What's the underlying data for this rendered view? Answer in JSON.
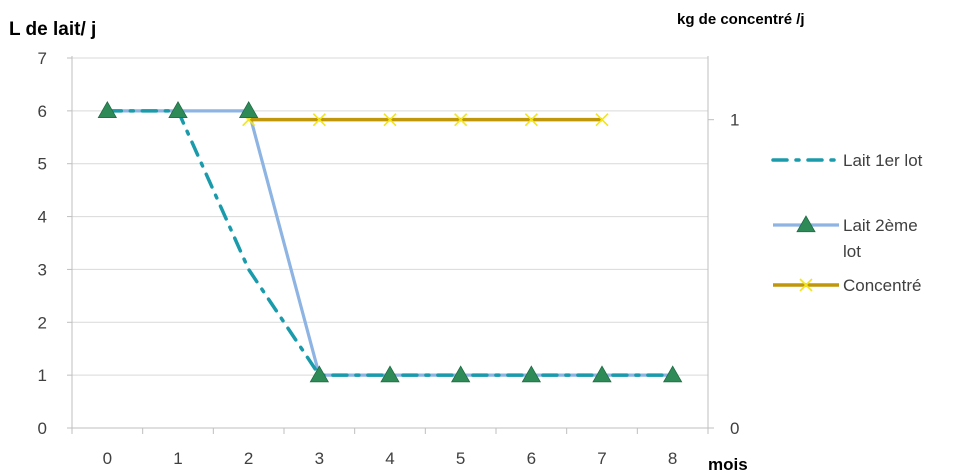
{
  "chart_data": {
    "type": "line",
    "x": [
      0,
      1,
      2,
      3,
      4,
      5,
      6,
      7,
      8
    ],
    "ylabel": "L de lait/ j",
    "y2label": "kg de concentré /j",
    "xlabel": "mois",
    "ylim": [
      0,
      7
    ],
    "y2lim": [
      0,
      1.2
    ],
    "y_ticks": [
      0,
      1,
      2,
      3,
      4,
      5,
      6,
      7
    ],
    "y2_ticks": [
      0,
      1
    ],
    "grid": "horizontal",
    "legend_position": "right",
    "series": [
      {
        "name": "Lait 1er lot",
        "axis": "left",
        "x": [
          0,
          1,
          2,
          3,
          4,
          5,
          6,
          7,
          8
        ],
        "values": [
          6,
          6,
          3,
          1,
          1,
          1,
          1,
          1,
          1
        ],
        "color": "#1a9bab",
        "style": "dash-dot"
      },
      {
        "name": "Lait 2ème lot",
        "legend_lines": [
          "Lait 2ème",
          "lot"
        ],
        "axis": "left",
        "x": [
          0,
          1,
          2,
          3,
          4,
          5,
          6,
          7,
          8
        ],
        "values": [
          6,
          6,
          6,
          1,
          1,
          1,
          1,
          1,
          1
        ],
        "color": "#8eb4e3",
        "marker": "triangle",
        "marker_color": "#2e8b57"
      },
      {
        "name": "Concentré",
        "axis": "right",
        "x": [
          2,
          3,
          4,
          5,
          6,
          7
        ],
        "values": [
          1,
          1,
          1,
          1,
          1,
          1
        ],
        "color": "#c0960a",
        "marker": "x",
        "marker_color": "#f2e51a"
      }
    ]
  }
}
